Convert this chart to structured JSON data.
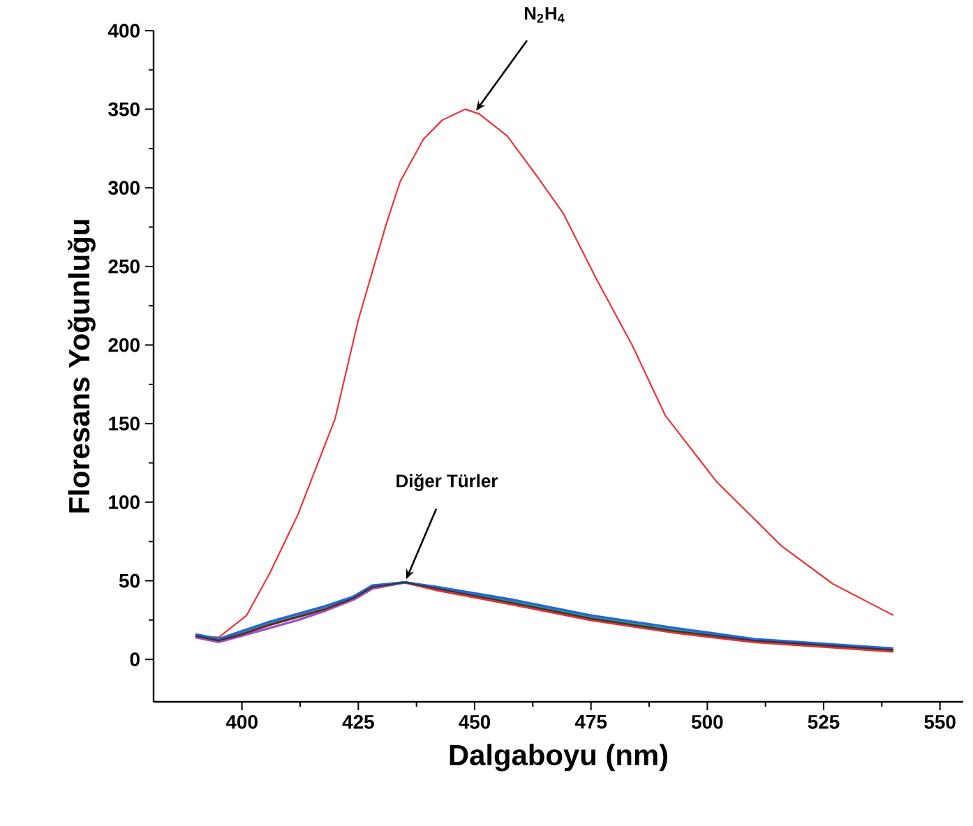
{
  "chart_data": {
    "type": "line",
    "xlabel": "Dalgaboyu (nm)",
    "ylabel": "Floresans Yoğunluğu",
    "xlim": [
      381,
      555
    ],
    "ylim": [
      -27,
      400
    ],
    "xticks": [
      400,
      425,
      450,
      475,
      500,
      525,
      550
    ],
    "yticks": [
      0,
      50,
      100,
      150,
      200,
      250,
      300,
      350,
      400
    ],
    "annotations": [
      {
        "text": "N$_{2}$H$_{4}$",
        "x": 450,
        "y": 347
      },
      {
        "text": "Diğer Türler",
        "x": 435,
        "y": 49
      }
    ],
    "series": [
      {
        "color": "#ee3333",
        "x": [
          390,
          395,
          401,
          406,
          412,
          420,
          425,
          431,
          434,
          439,
          443,
          448,
          451,
          457,
          463,
          469,
          476,
          484,
          491,
          502,
          516,
          527,
          540
        ],
        "values": [
          15,
          14,
          28,
          55,
          92,
          153,
          216,
          277,
          304,
          331,
          343,
          350,
          347,
          333,
          309,
          284,
          243,
          199,
          155,
          113,
          72,
          48,
          28
        ]
      },
      {
        "color": "#333333",
        "x": [
          390,
          395,
          400,
          406,
          412,
          418,
          424,
          428,
          435,
          442,
          458,
          475,
          493,
          510,
          540
        ],
        "values": [
          15,
          12,
          16,
          22,
          27,
          32,
          39,
          46,
          49,
          45,
          36,
          26,
          18,
          12,
          6
        ]
      },
      {
        "color": "#9955cc",
        "x": [
          390,
          395,
          400,
          406,
          412,
          418,
          424,
          428,
          435,
          442
        ],
        "values": [
          14,
          11,
          15,
          20,
          25,
          31,
          38,
          45,
          49,
          45
        ]
      },
      {
        "color": "#339966",
        "x": [
          390,
          395,
          400,
          406,
          412,
          418,
          424,
          428,
          435,
          442,
          458,
          475,
          493,
          510,
          540
        ],
        "values": [
          15,
          12,
          17,
          23,
          28,
          33,
          40,
          46,
          49,
          45,
          37,
          27,
          19,
          12,
          6
        ]
      },
      {
        "color": "#dd3333",
        "x": [
          390,
          395,
          400,
          406,
          412,
          418,
          424,
          428,
          435,
          442,
          458,
          475,
          493,
          510,
          540
        ],
        "values": [
          15,
          12,
          16,
          22,
          27,
          32,
          39,
          46,
          49,
          44,
          35,
          25,
          17,
          11,
          5
        ]
      },
      {
        "color": "#2266dd",
        "x": [
          390,
          395,
          400,
          406,
          412,
          418,
          424,
          428,
          435,
          442,
          458,
          475,
          493,
          510,
          540
        ],
        "values": [
          16,
          13,
          18,
          24,
          29,
          34,
          40,
          47,
          49,
          46,
          38,
          28,
          20,
          13,
          7
        ]
      }
    ]
  }
}
